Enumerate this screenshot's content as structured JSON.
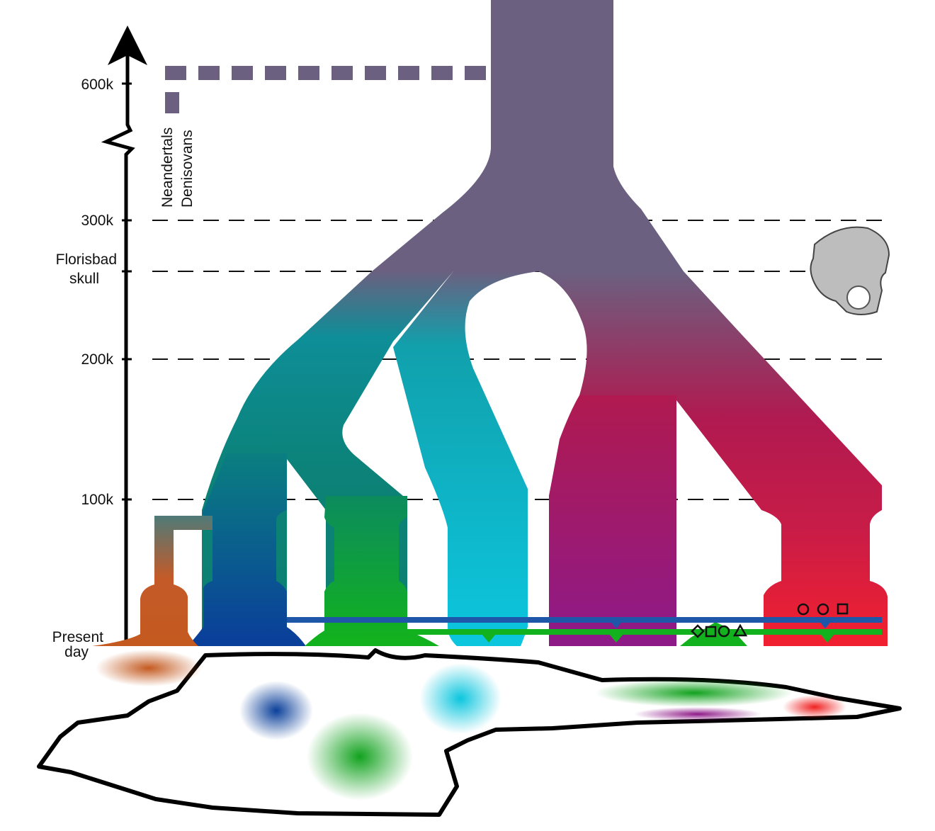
{
  "time_axis": {
    "labels": [
      {
        "lines": [
          "600k"
        ]
      },
      {
        "lines": [
          "300k"
        ]
      },
      {
        "lines": [
          "Florisbad",
          "skull"
        ]
      },
      {
        "lines": [
          "200k"
        ]
      },
      {
        "lines": [
          "100k"
        ]
      },
      {
        "lines": [
          "Present",
          "day"
        ]
      }
    ]
  },
  "archaic_groups": [
    "Neandertals",
    "Denisovans"
  ]
}
